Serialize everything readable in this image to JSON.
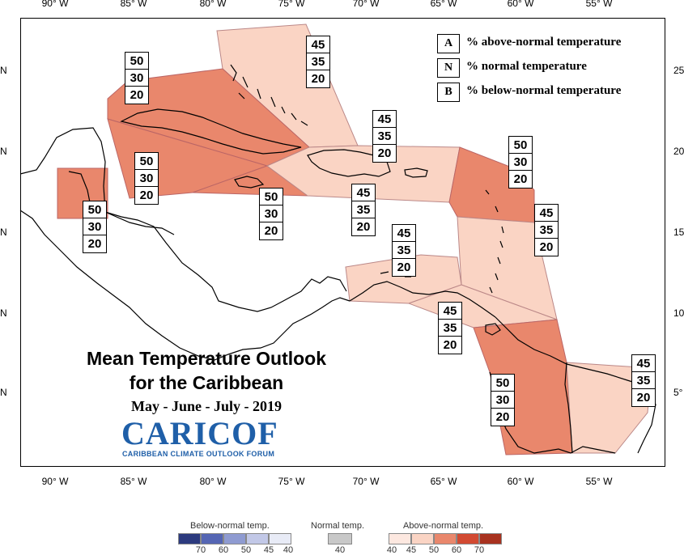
{
  "axes": {
    "lon_top": [
      "90° W",
      "85° W",
      "80° W",
      "75° W",
      "70° W",
      "65° W",
      "60° W",
      "55° W"
    ],
    "lon_bottom": [
      "90° W",
      "85° W",
      "80° W",
      "75° W",
      "70° W",
      "65° W",
      "60° W",
      "55° W"
    ],
    "lat_left": [
      "N",
      "N",
      "N",
      "N",
      "N"
    ],
    "lat_right": [
      "25",
      "20",
      "15",
      "10",
      "5°"
    ]
  },
  "legend_key": [
    {
      "key": "A",
      "desc": "% above-normal temperature"
    },
    {
      "key": "N",
      "desc": "% normal temperature"
    },
    {
      "key": "B",
      "desc": "% below-normal temperature"
    }
  ],
  "zone_probabilities": [
    {
      "zone": "bahamas",
      "values": [
        "45",
        "35",
        "20"
      ],
      "color": "#fad4c4"
    },
    {
      "zone": "cuba",
      "values": [
        "50",
        "30",
        "20"
      ],
      "color": "#e9876c"
    },
    {
      "zone": "belize",
      "values": [
        "50",
        "30",
        "20"
      ],
      "color": "#e9876c"
    },
    {
      "zone": "cayman-jamaica",
      "values": [
        "50",
        "30",
        "20"
      ],
      "color": "#e9876c"
    },
    {
      "zone": "west-hispaniola",
      "values": [
        "50",
        "30",
        "20"
      ],
      "color": "#e9876c"
    },
    {
      "zone": "hispaniola-puertorico",
      "values": [
        "45",
        "35",
        "20"
      ],
      "color": "#fad4c4"
    },
    {
      "zone": "puertorico-south",
      "values": [
        "45",
        "35",
        "20"
      ],
      "color": "#fad4c4"
    },
    {
      "zone": "leeward-islands",
      "values": [
        "50",
        "30",
        "20"
      ],
      "color": "#e9876c"
    },
    {
      "zone": "windward-islands",
      "values": [
        "45",
        "35",
        "20"
      ],
      "color": "#fad4c4"
    },
    {
      "zone": "abc-islands",
      "values": [
        "45",
        "35",
        "20"
      ],
      "color": "#fad4c4"
    },
    {
      "zone": "trinidad-tobago",
      "values": [
        "45",
        "35",
        "20"
      ],
      "color": "#fad4c4"
    },
    {
      "zone": "guyana-suriname",
      "values": [
        "50",
        "30",
        "20"
      ],
      "color": "#e9876c"
    },
    {
      "zone": "french-guiana",
      "values": [
        "45",
        "35",
        "20"
      ],
      "color": "#fad4c4"
    }
  ],
  "title": {
    "line1": "Mean Temperature Outlook",
    "line2": "for the Caribbean",
    "season": "May - June - July - 2019"
  },
  "logo": {
    "name": "CARICOF",
    "subtitle": "CARIBBEAN CLIMATE OUTLOOK FORUM"
  },
  "colorbar": {
    "below": {
      "title": "Below-normal temp.",
      "labels": [
        "70",
        "60",
        "50",
        "45",
        "40"
      ],
      "colors": [
        "#2c3a7e",
        "#5566b4",
        "#8f9bd1",
        "#c2c8e7",
        "#e8ebf6"
      ]
    },
    "normal": {
      "title": "Normal temp.",
      "labels": [
        "40"
      ],
      "colors": [
        "#c8c8c8"
      ]
    },
    "above": {
      "title": "Above-normal temp.",
      "labels": [
        "40",
        "45",
        "50",
        "60",
        "70"
      ],
      "colors": [
        "#fde8e0",
        "#fad4c4",
        "#e9876c",
        "#d24a32",
        "#a8321f"
      ]
    }
  }
}
